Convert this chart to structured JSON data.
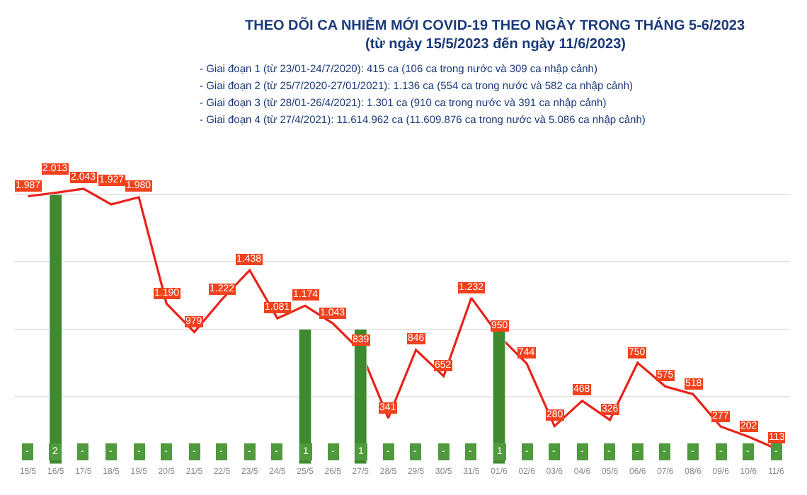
{
  "chart_data": {
    "type": "line",
    "title": "THEO DÕI CA NHIỄM MỚI COVID-19 THEO NGÀY TRONG THÁNG 5-6/2023",
    "subtitle": "(từ ngày 15/5/2023 đến ngày 11/6/2023)",
    "annotations": [
      "- Giai đoạn 1 (từ 23/01-24/7/2020): 415 ca (106 ca trong nước và 309 ca nhập cảnh)",
      "- Giai đoạn 2 (từ 25/7/2020-27/01/2021): 1.136 ca (554 ca trong nước và 582 ca nhập cảnh)",
      "- Giai đoạn 3 (từ 28/01-26/4/2021): 1.301 ca (910 ca trong nước và 391 ca nhập cảnh)",
      "- Giai đoạn 4 (từ 27/4/2021): 11.614.962 ca (11.609.876 ca trong nước và 5.086 ca nhập cảnh)"
    ],
    "categories": [
      "15/5",
      "16/5",
      "17/5",
      "18/5",
      "19/5",
      "20/5",
      "21/5",
      "22/5",
      "23/5",
      "24/5",
      "25/5",
      "26/5",
      "27/5",
      "28/5",
      "29/5",
      "30/5",
      "31/5",
      "01/6",
      "02/6",
      "03/6",
      "04/6",
      "05/6",
      "06/6",
      "07/6",
      "08/6",
      "09/6",
      "10/6",
      "11/6"
    ],
    "series": [
      {
        "type": "bar",
        "axis": "y2",
        "color": "#3f8a2e",
        "values": [
          null,
          2,
          null,
          null,
          null,
          null,
          null,
          null,
          null,
          null,
          1,
          null,
          1,
          null,
          null,
          null,
          null,
          1,
          null,
          null,
          null,
          null,
          null,
          null,
          null,
          null,
          null,
          null
        ],
        "value_labels": [
          "-",
          "2",
          "-",
          "-",
          "-",
          "-",
          "-",
          "-",
          "-",
          "-",
          "1",
          "-",
          "1",
          "-",
          "-",
          "-",
          "-",
          "1",
          "-",
          "-",
          "-",
          "-",
          "-",
          "-",
          "-",
          "-",
          "-",
          "-"
        ]
      },
      {
        "color": "#e8231b",
        "values": [
          1987,
          2013,
          2043,
          1927,
          1980,
          1190,
          979,
          1222,
          1438,
          1081,
          1174,
          1043,
          839,
          341,
          846,
          652,
          1232,
          950,
          744,
          280,
          468,
          326,
          750,
          575,
          518,
          277,
          202,
          113
        ],
        "value_labels": [
          "1.987",
          "2.013",
          "2.043",
          "1.927",
          "1.980",
          "1.190",
          "979",
          "1.222",
          "1.438",
          "1.081",
          "1.174",
          "1.043",
          "839",
          "341",
          "846",
          "652",
          "1.232",
          "950",
          "744",
          "280",
          "468",
          "326",
          "750",
          "575",
          "518",
          "277",
          "202",
          "113"
        ]
      }
    ],
    "ylim": [
      0,
      2100
    ],
    "yticks": [
      {
        "value": 500,
        "label": null
      },
      {
        "value": 1000,
        "label": null
      },
      {
        "value": 1500,
        "label": null
      },
      {
        "value": 2000,
        "label": null
      }
    ],
    "y2lim": [
      0,
      2.1
    ],
    "grid": "y",
    "tick_labels": "x",
    "marker": "none"
  }
}
